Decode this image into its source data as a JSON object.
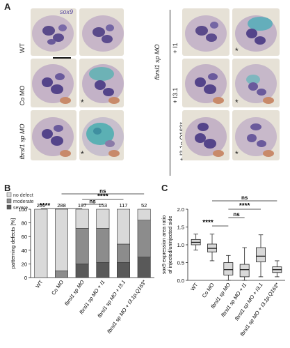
{
  "panels": {
    "a": "A",
    "b": "B",
    "c": "C"
  },
  "panelA": {
    "gene_label": "sox9",
    "rows_left": [
      "WT",
      "Co MO",
      "fbrsl1 sp MO"
    ],
    "group_right": "fbrsl1 sp MO",
    "rows_right": [
      "+ I1",
      "+ I3.1",
      "+ I3.1p.Q163*"
    ],
    "asterisk": "*"
  },
  "panelB": {
    "legend": [
      "no defect",
      "moderate",
      "severe"
    ],
    "sig": [
      "****",
      "ns",
      "****",
      "ns"
    ],
    "ylabel": "patterning defects [%]",
    "chart_data": {
      "type": "bar",
      "stacked": true,
      "categories": [
        "WT",
        "Co MO",
        "fbrsl1 sp MO",
        "fbrsl1 sp MO + I1",
        "fbrsl1 sp MO + I3.1",
        "fbrsl1 sp MO + I3.1p.Q163*"
      ],
      "n": [
        "201",
        "288",
        "197",
        "153",
        "117",
        "52"
      ],
      "series": [
        {
          "name": "severe",
          "values": [
            0,
            0,
            20,
            22,
            22,
            30
          ]
        },
        {
          "name": "moderate",
          "values": [
            0,
            10,
            52,
            50,
            27,
            54
          ]
        },
        {
          "name": "no defect",
          "values": [
            100,
            90,
            28,
            28,
            51,
            16
          ]
        }
      ],
      "ylim": [
        0,
        100
      ],
      "yticks": [
        "0",
        "20",
        "40",
        "60",
        "80",
        "100"
      ],
      "colors": {
        "no defect": "#d9d9d9",
        "moderate": "#8c8c8c",
        "severe": "#595959"
      }
    }
  },
  "panelC": {
    "ylabel": "sox9 expression area ratio\nof injected/uninjected side",
    "sig": [
      "****",
      "ns",
      "****",
      "ns"
    ],
    "chart_data": {
      "type": "box",
      "categories": [
        "WT",
        "Co MO",
        "fbrsl1 sp MO",
        "fbrsl1 sp MO + I1",
        "fbrsl1 sp MO + I3.1",
        "fbrsl1 sp MO + I3.1p.Q163*"
      ],
      "boxes": [
        {
          "min": 0.85,
          "q1": 1.0,
          "median": 1.07,
          "q3": 1.15,
          "max": 1.3
        },
        {
          "min": 0.55,
          "q1": 0.8,
          "median": 0.9,
          "q3": 1.02,
          "max": 1.3
        },
        {
          "min": 0.0,
          "q1": 0.15,
          "median": 0.3,
          "q3": 0.5,
          "max": 0.7
        },
        {
          "min": 0.0,
          "q1": 0.1,
          "median": 0.3,
          "q3": 0.45,
          "max": 0.92
        },
        {
          "min": 0.1,
          "q1": 0.52,
          "median": 0.68,
          "q3": 0.92,
          "max": 1.28
        },
        {
          "min": 0.1,
          "q1": 0.22,
          "median": 0.3,
          "q3": 0.38,
          "max": 0.55
        }
      ],
      "ylim": [
        0,
        2
      ],
      "yticks": [
        "0.0",
        "0.5",
        "1.0",
        "1.5",
        "2.0"
      ]
    }
  }
}
